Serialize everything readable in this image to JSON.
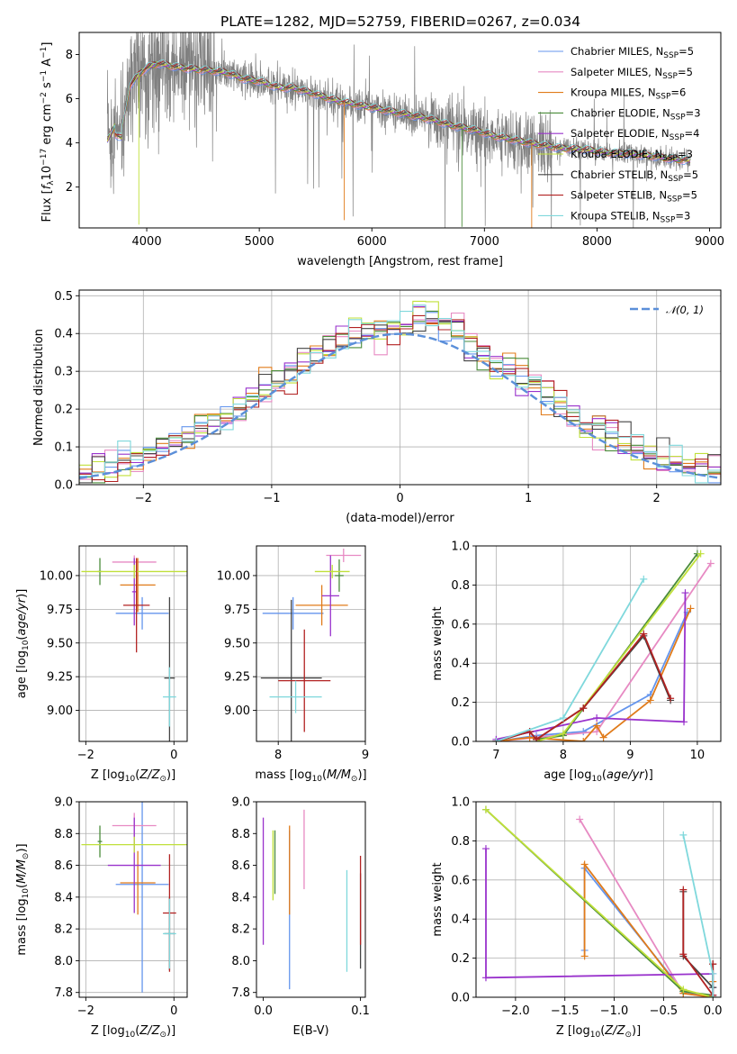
{
  "figure": {
    "title": "PLATE=1282, MJD=52759, FIBERID=0267, z=0.034"
  },
  "colors": {
    "Chabrier MILES": "#6495ed",
    "Salpeter MILES": "#e78ac3",
    "Kroupa MILES": "#e07b1a",
    "Chabrier ELODIE": "#4a8c3a",
    "Salpeter ELODIE": "#9932cc",
    "Kroupa ELODIE": "#c0e03a",
    "Chabrier STELIB": "#444444",
    "Salpeter STELIB": "#b22222",
    "Kroupa STELIB": "#7fd8dc",
    "data": "#808080",
    "normal_curve": "#5b8fd9",
    "grid": "#b0b0b0"
  },
  "chart_data": [
    {
      "id": "spectrum",
      "type": "line",
      "xlabel": "wavelength [Angstrom, rest frame]",
      "ylabel": "Flux [f_λ 10^-17 erg cm^-2 s^-1 A^-1]",
      "xlim": [
        3400,
        9100
      ],
      "ylim": [
        0.15,
        9.0
      ],
      "xticks": [
        "4000",
        "5000",
        "6000",
        "7000",
        "8000",
        "9000"
      ],
      "yticks": [
        "2",
        "4",
        "6",
        "8"
      ],
      "grid": false,
      "legend_position": "upper right",
      "legend": [
        {
          "model": "Chabrier MILES",
          "nssp": "5"
        },
        {
          "model": "Salpeter MILES",
          "nssp": "5"
        },
        {
          "model": "Kroupa MILES",
          "nssp": "6"
        },
        {
          "model": "Chabrier ELODIE",
          "nssp": "3"
        },
        {
          "model": "Salpeter ELODIE",
          "nssp": "4"
        },
        {
          "model": "Kroupa ELODIE",
          "nssp": "3"
        },
        {
          "model": "Chabrier STELIB",
          "nssp": "5"
        },
        {
          "model": "Salpeter STELIB",
          "nssp": "5"
        },
        {
          "model": "Kroupa STELIB",
          "nssp": "3"
        }
      ],
      "model_continuum": [
        [
          3650,
          4.1
        ],
        [
          3720,
          4.8
        ],
        [
          3780,
          4.6
        ],
        [
          3850,
          6.6
        ],
        [
          3950,
          7.2
        ],
        [
          4000,
          7.4
        ],
        [
          4100,
          7.6
        ],
        [
          4300,
          7.4
        ],
        [
          4500,
          7.3
        ],
        [
          4700,
          7.2
        ],
        [
          4860,
          6.9
        ],
        [
          5000,
          6.8
        ],
        [
          5175,
          6.5
        ],
        [
          5300,
          6.5
        ],
        [
          5500,
          6.2
        ],
        [
          5700,
          5.9
        ],
        [
          5900,
          5.7
        ],
        [
          6100,
          5.5
        ],
        [
          6300,
          5.3
        ],
        [
          6500,
          5.1
        ],
        [
          6700,
          4.8
        ],
        [
          6900,
          4.6
        ],
        [
          7100,
          4.3
        ],
        [
          7300,
          4.1
        ],
        [
          7500,
          3.9
        ],
        [
          7700,
          3.75
        ],
        [
          7900,
          3.7
        ],
        [
          8100,
          3.55
        ],
        [
          8300,
          3.5
        ],
        [
          8500,
          3.4
        ],
        [
          8700,
          3.25
        ],
        [
          8820,
          3.2
        ]
      ]
    },
    {
      "id": "residuals",
      "type": "bar",
      "xlabel": "(data-model)/error",
      "ylabel": "Normed distribution",
      "xlim": [
        -2.5,
        2.5
      ],
      "ylim": [
        0,
        0.515
      ],
      "xticks": [
        "−2",
        "−1",
        "0",
        "1",
        "2"
      ],
      "yticks": [
        "0.0",
        "0.1",
        "0.2",
        "0.3",
        "0.4",
        "0.5"
      ],
      "grid": true,
      "legend_position": "upper right",
      "legend_label": "𝒩(0, 1)",
      "bin_width": 0.1
    },
    {
      "id": "age_vs_metallicity",
      "type": "scatter",
      "xlabel": "Z [log10(Z/Z⊙)]",
      "ylabel": "age  [log10(age/yr)]",
      "xlim": [
        -2.15,
        0.3
      ],
      "ylim": [
        8.77,
        10.22
      ],
      "xticks": [
        "−2",
        "0"
      ],
      "yticks": [
        "9.00",
        "9.25",
        "9.50",
        "9.75",
        "10.00"
      ],
      "grid": true,
      "points": [
        {
          "model": "Chabrier MILES",
          "x": -0.72,
          "xerr": 0.6,
          "y": 9.72,
          "yerr": 0.12
        },
        {
          "model": "Salpeter MILES",
          "x": -0.9,
          "xerr": 0.5,
          "y": 10.1,
          "yerr": 0.05
        },
        {
          "model": "Kroupa MILES",
          "x": -0.82,
          "xerr": 0.4,
          "y": 9.93,
          "yerr": 0.2
        },
        {
          "model": "Chabrier ELODIE",
          "x": -1.68,
          "xerr": 0.05,
          "y": 10.03,
          "yerr": 0.1
        },
        {
          "model": "Salpeter ELODIE",
          "x": -0.9,
          "xerr": 0.05,
          "y": 9.88,
          "yerr": 0.25
        },
        {
          "model": "Kroupa ELODIE",
          "x": -0.9,
          "xerr": 1.2,
          "y": 10.03,
          "yerr": 0.05
        },
        {
          "model": "Chabrier STELIB",
          "x": -0.1,
          "xerr": 0.12,
          "y": 9.24,
          "yerr": 0.6
        },
        {
          "model": "Salpeter STELIB",
          "x": -0.85,
          "xerr": 0.3,
          "y": 9.78,
          "yerr": 0.35
        },
        {
          "model": "Kroupa STELIB",
          "x": -0.1,
          "xerr": 0.15,
          "y": 9.1,
          "yerr": 0.22
        }
      ]
    },
    {
      "id": "age_vs_mass",
      "type": "scatter",
      "xlabel": "mass [log10(M/M⊙)]",
      "ylabel": "",
      "xlim": [
        7.75,
        9.0
      ],
      "ylim": [
        8.77,
        10.22
      ],
      "xticks": [
        "8",
        "9"
      ],
      "yticks": [
        "9.00",
        "9.25",
        "9.50",
        "9.75",
        "10.00"
      ],
      "grid": true,
      "points": [
        {
          "model": "Chabrier MILES",
          "x": 8.17,
          "xerr": 0.35,
          "y": 9.72,
          "yerr": 0.12
        },
        {
          "model": "Salpeter MILES",
          "x": 8.75,
          "xerr": 0.2,
          "y": 10.15,
          "yerr": 0.05
        },
        {
          "model": "Kroupa MILES",
          "x": 8.5,
          "xerr": 0.3,
          "y": 9.78,
          "yerr": 0.15
        },
        {
          "model": "Chabrier ELODIE",
          "x": 8.7,
          "xerr": 0.05,
          "y": 10.0,
          "yerr": 0.12
        },
        {
          "model": "Salpeter ELODIE",
          "x": 8.6,
          "xerr": 0.1,
          "y": 9.85,
          "yerr": 0.3
        },
        {
          "model": "Kroupa ELODIE",
          "x": 8.62,
          "xerr": 0.2,
          "y": 10.03,
          "yerr": 0.05
        },
        {
          "model": "Chabrier STELIB",
          "x": 8.15,
          "xerr": 0.35,
          "y": 9.24,
          "yerr": 0.58
        },
        {
          "model": "Salpeter STELIB",
          "x": 8.3,
          "xerr": 0.3,
          "y": 9.22,
          "yerr": 0.38
        },
        {
          "model": "Kroupa STELIB",
          "x": 8.2,
          "xerr": 0.3,
          "y": 9.1,
          "yerr": 0.12
        }
      ]
    },
    {
      "id": "mass_weight_vs_age",
      "type": "line",
      "xlabel": "age  [log10(age/yr)]",
      "ylabel": "mass weight",
      "xlim": [
        6.7,
        10.35
      ],
      "ylim": [
        0,
        1.0
      ],
      "xticks": [
        "7",
        "8",
        "9",
        "10"
      ],
      "yticks": [
        "0.0",
        "0.2",
        "0.4",
        "0.6",
        "0.8",
        "1.0"
      ],
      "grid": true,
      "series": [
        {
          "model": "Chabrier MILES",
          "x": [
            7.0,
            7.6,
            8.3,
            9.3,
            9.85
          ],
          "y": [
            0.0,
            0.03,
            0.05,
            0.24,
            0.66
          ]
        },
        {
          "model": "Salpeter MILES",
          "x": [
            7.0,
            7.6,
            8.5,
            10.2
          ],
          "y": [
            0.0,
            0.02,
            0.05,
            0.91
          ]
        },
        {
          "model": "Kroupa MILES",
          "x": [
            7.0,
            7.5,
            8.3,
            8.5,
            8.6,
            9.3,
            9.9
          ],
          "y": [
            0.0,
            0.02,
            0.0,
            0.08,
            0.02,
            0.21,
            0.68
          ]
        },
        {
          "model": "Chabrier ELODIE",
          "x": [
            7.6,
            8.0,
            10.0
          ],
          "y": [
            0.01,
            0.03,
            0.96
          ]
        },
        {
          "model": "Salpeter ELODIE",
          "x": [
            7.0,
            8.5,
            9.8,
            9.82
          ],
          "y": [
            0.01,
            0.12,
            0.1,
            0.76
          ]
        },
        {
          "model": "Kroupa ELODIE",
          "x": [
            7.6,
            8.0,
            10.05
          ],
          "y": [
            0.0,
            0.04,
            0.96
          ]
        },
        {
          "model": "Chabrier STELIB",
          "x": [
            7.0,
            7.5,
            7.6,
            8.3,
            9.2,
            9.6
          ],
          "y": [
            0.0,
            0.05,
            0.01,
            0.17,
            0.54,
            0.21
          ]
        },
        {
          "model": "Salpeter STELIB",
          "x": [
            7.0,
            7.5,
            7.6,
            8.3,
            9.2,
            9.6
          ],
          "y": [
            0.0,
            0.05,
            0.01,
            0.17,
            0.55,
            0.22
          ]
        },
        {
          "model": "Kroupa STELIB",
          "x": [
            7.0,
            8.0,
            9.2
          ],
          "y": [
            0.0,
            0.12,
            0.83
          ]
        }
      ]
    },
    {
      "id": "mass_vs_metallicity",
      "type": "scatter",
      "xlabel": "Z [log10(Z/Z⊙)]",
      "ylabel": "mass [log10(M/M⊙)]",
      "xlim": [
        -2.15,
        0.3
      ],
      "ylim": [
        7.77,
        9.0
      ],
      "xticks": [
        "−2",
        "0"
      ],
      "yticks": [
        "7.8",
        "8.0",
        "8.2",
        "8.4",
        "8.6",
        "8.8",
        "9.0"
      ],
      "grid": true,
      "points": [
        {
          "model": "Chabrier MILES",
          "x": -0.72,
          "xerr": 0.6,
          "y": 8.48,
          "yerr": 0.68
        },
        {
          "model": "Salpeter MILES",
          "x": -0.9,
          "xerr": 0.5,
          "y": 8.85,
          "yerr": 0.08
        },
        {
          "model": "Kroupa MILES",
          "x": -0.82,
          "xerr": 0.4,
          "y": 8.49,
          "yerr": 0.2
        },
        {
          "model": "Chabrier ELODIE",
          "x": -1.68,
          "xerr": 0.05,
          "y": 8.75,
          "yerr": 0.1
        },
        {
          "model": "Salpeter ELODIE",
          "x": -0.9,
          "xerr": 0.6,
          "y": 8.6,
          "yerr": 0.3
        },
        {
          "model": "Kroupa ELODIE",
          "x": -0.9,
          "xerr": 1.2,
          "y": 8.73,
          "yerr": 0.05
        },
        {
          "model": "Chabrier STELIB",
          "x": -0.1,
          "xerr": 0.12,
          "y": 8.17,
          "yerr": 0.23
        },
        {
          "model": "Salpeter STELIB",
          "x": -0.1,
          "xerr": 0.15,
          "y": 8.3,
          "yerr": 0.37
        },
        {
          "model": "Kroupa STELIB",
          "x": -0.1,
          "xerr": 0.15,
          "y": 8.17,
          "yerr": 0.22
        }
      ]
    },
    {
      "id": "mass_vs_ebv",
      "type": "scatter",
      "xlabel": "E(B-V)",
      "ylabel": "",
      "xlim": [
        -0.007,
        0.105
      ],
      "ylim": [
        7.77,
        9.0
      ],
      "xticks": [
        "0.0",
        "0.1"
      ],
      "yticks": [
        "7.8",
        "8.0",
        "8.2",
        "8.4",
        "8.6",
        "8.8",
        "9.0"
      ],
      "grid": false,
      "points": [
        {
          "model": "Chabrier MILES",
          "x": 0.027,
          "y": 8.32,
          "yerr": 0.5
        },
        {
          "model": "Salpeter MILES",
          "x": 0.042,
          "y": 8.7,
          "yerr": 0.25
        },
        {
          "model": "Kroupa MILES",
          "x": 0.027,
          "y": 8.57,
          "yerr": 0.28
        },
        {
          "model": "Chabrier ELODIE",
          "x": 0.012,
          "y": 8.62,
          "yerr": 0.2
        },
        {
          "model": "Salpeter ELODIE",
          "x": 0.0,
          "y": 8.5,
          "yerr": 0.4
        },
        {
          "model": "Kroupa ELODIE",
          "x": 0.01,
          "y": 8.6,
          "yerr": 0.22
        },
        {
          "model": "Chabrier STELIB",
          "x": 0.1,
          "y": 8.25,
          "yerr": 0.3
        },
        {
          "model": "Salpeter STELIB",
          "x": 0.1,
          "y": 8.38,
          "yerr": 0.28
        },
        {
          "model": "Kroupa STELIB",
          "x": 0.086,
          "y": 8.25,
          "yerr": 0.32
        }
      ]
    },
    {
      "id": "mass_weight_vs_metallicity",
      "type": "line",
      "xlabel": "Z [log10(Z/Z⊙)]",
      "ylabel": "mass weight",
      "xlim": [
        -2.4,
        0.08
      ],
      "ylim": [
        0,
        1.0
      ],
      "xticks": [
        "−2.0",
        "−1.5",
        "−1.0",
        "−0.5",
        "0.0"
      ],
      "yticks": [
        "0.0",
        "0.2",
        "0.4",
        "0.6",
        "0.8",
        "1.0"
      ],
      "grid": true,
      "series": [
        {
          "model": "Chabrier MILES",
          "x": [
            -1.3,
            -1.3,
            -0.3,
            0.0,
            0.0
          ],
          "y": [
            0.24,
            0.66,
            0.03,
            0.0,
            0.05
          ]
        },
        {
          "model": "Salpeter MILES",
          "x": [
            -1.35,
            -0.3,
            0.0,
            0.0
          ],
          "y": [
            0.91,
            0.02,
            0.0,
            0.05
          ]
        },
        {
          "model": "Kroupa MILES",
          "x": [
            -1.3,
            -1.3,
            -0.3,
            0.0,
            0.0
          ],
          "y": [
            0.21,
            0.68,
            0.02,
            0.0,
            0.08
          ]
        },
        {
          "model": "Chabrier ELODIE",
          "x": [
            -2.3,
            -0.3,
            0.0
          ],
          "y": [
            0.96,
            0.03,
            0.01
          ]
        },
        {
          "model": "Salpeter ELODIE",
          "x": [
            -2.3,
            -2.3,
            0.0,
            0.0
          ],
          "y": [
            0.76,
            0.1,
            0.12,
            0.01
          ]
        },
        {
          "model": "Kroupa ELODIE",
          "x": [
            -2.3,
            -0.3,
            0.0
          ],
          "y": [
            0.96,
            0.04,
            0.0
          ]
        },
        {
          "model": "Chabrier STELIB",
          "x": [
            -0.3,
            -0.3,
            0.0,
            0.0
          ],
          "y": [
            0.54,
            0.21,
            0.05,
            0.17
          ]
        },
        {
          "model": "Salpeter STELIB",
          "x": [
            -0.3,
            -0.3,
            0.0,
            0.0
          ],
          "y": [
            0.55,
            0.22,
            0.01,
            0.17
          ]
        },
        {
          "model": "Kroupa STELIB",
          "x": [
            -0.3,
            0.0,
            0.0
          ],
          "y": [
            0.83,
            0.12,
            0.0
          ]
        }
      ]
    }
  ]
}
